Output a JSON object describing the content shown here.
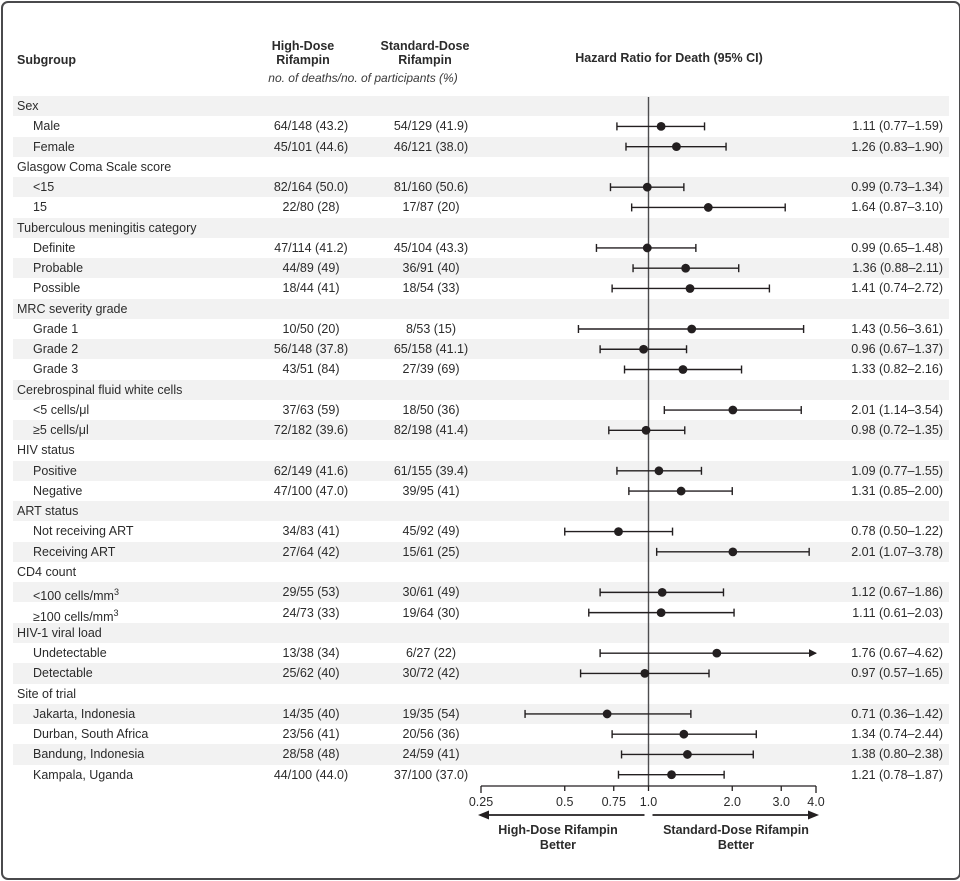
{
  "colors": {
    "band": "#f2f2f2",
    "ink": "#2b2b2b",
    "plot_line": "#231f20",
    "ref_line": "#4d4d4f",
    "border": "#4a4a4c"
  },
  "header": {
    "subgroup": "Subgroup",
    "high_dose": "High-Dose\nRifampin",
    "standard_dose": "Standard-Dose\nRifampin",
    "units_note": "no. of deaths/no. of participants (%)",
    "plot_title": "Hazard Ratio for Death (95% CI)"
  },
  "axis": {
    "scale": "log",
    "min": 0.25,
    "max": 4.0,
    "reference": 1.0,
    "ticks": [
      0.25,
      0.5,
      0.75,
      1.0,
      2.0,
      3.0,
      4.0
    ],
    "tick_labels": [
      "0.25",
      "0.5",
      "0.75",
      "1.0",
      "2.0",
      "3.0",
      "4.0"
    ],
    "left_better": "High-Dose Rifampin\nBetter",
    "right_better": "Standard-Dose Rifampin\nBetter"
  },
  "chart_data": {
    "type": "scatter",
    "subtype": "forest-plot",
    "title": "Hazard Ratio for Death (95% CI)",
    "xscale": "log",
    "xlim": [
      0.25,
      4.0
    ],
    "reference_line": 1.0,
    "legend_position": "none",
    "rows": [
      {
        "type": "category",
        "label": "Sex"
      },
      {
        "type": "item",
        "label": "Male",
        "high_dose": "64/148 (43.2)",
        "standard_dose": "54/129 (41.9)",
        "hr": 1.11,
        "ci_low": 0.77,
        "ci_high": 1.59,
        "hr_text": "1.11 (0.77–1.59)"
      },
      {
        "type": "item",
        "label": "Female",
        "high_dose": "45/101 (44.6)",
        "standard_dose": "46/121 (38.0)",
        "hr": 1.26,
        "ci_low": 0.83,
        "ci_high": 1.9,
        "hr_text": "1.26 (0.83–1.90)"
      },
      {
        "type": "category",
        "label": "Glasgow Coma Scale score"
      },
      {
        "type": "item",
        "label": "<15",
        "high_dose": "82/164 (50.0)",
        "standard_dose": "81/160 (50.6)",
        "hr": 0.99,
        "ci_low": 0.73,
        "ci_high": 1.34,
        "hr_text": "0.99 (0.73–1.34)"
      },
      {
        "type": "item",
        "label": "15",
        "high_dose": "22/80 (28)",
        "standard_dose": "17/87 (20)",
        "hr": 1.64,
        "ci_low": 0.87,
        "ci_high": 3.1,
        "hr_text": "1.64 (0.87–3.10)"
      },
      {
        "type": "category",
        "label": "Tuberculous meningitis category"
      },
      {
        "type": "item",
        "label": "Definite",
        "high_dose": "47/114 (41.2)",
        "standard_dose": "45/104 (43.3)",
        "hr": 0.99,
        "ci_low": 0.65,
        "ci_high": 1.48,
        "hr_text": "0.99 (0.65–1.48)"
      },
      {
        "type": "item",
        "label": "Probable",
        "high_dose": "44/89 (49)",
        "standard_dose": "36/91 (40)",
        "hr": 1.36,
        "ci_low": 0.88,
        "ci_high": 2.11,
        "hr_text": "1.36 (0.88–2.11)"
      },
      {
        "type": "item",
        "label": "Possible",
        "high_dose": "18/44 (41)",
        "standard_dose": "18/54 (33)",
        "hr": 1.41,
        "ci_low": 0.74,
        "ci_high": 2.72,
        "hr_text": "1.41 (0.74–2.72)"
      },
      {
        "type": "category",
        "label": "MRC severity grade"
      },
      {
        "type": "item",
        "label": "Grade 1",
        "high_dose": "10/50 (20)",
        "standard_dose": "8/53 (15)",
        "hr": 1.43,
        "ci_low": 0.56,
        "ci_high": 3.61,
        "hr_text": "1.43 (0.56–3.61)"
      },
      {
        "type": "item",
        "label": "Grade 2",
        "high_dose": "56/148 (37.8)",
        "standard_dose": "65/158 (41.1)",
        "hr": 0.96,
        "ci_low": 0.67,
        "ci_high": 1.37,
        "hr_text": "0.96 (0.67–1.37)"
      },
      {
        "type": "item",
        "label": "Grade 3",
        "high_dose": "43/51 (84)",
        "standard_dose": "27/39 (69)",
        "hr": 1.33,
        "ci_low": 0.82,
        "ci_high": 2.16,
        "hr_text": "1.33 (0.82–2.16)"
      },
      {
        "type": "category",
        "label": "Cerebrospinal fluid white cells"
      },
      {
        "type": "item",
        "label": "<5 cells/μl",
        "high_dose": "37/63 (59)",
        "standard_dose": "18/50 (36)",
        "hr": 2.01,
        "ci_low": 1.14,
        "ci_high": 3.54,
        "hr_text": "2.01 (1.14–3.54)"
      },
      {
        "type": "item",
        "label": "≥5 cells/μl",
        "high_dose": "72/182 (39.6)",
        "standard_dose": "82/198 (41.4)",
        "hr": 0.98,
        "ci_low": 0.72,
        "ci_high": 1.35,
        "hr_text": "0.98 (0.72–1.35)"
      },
      {
        "type": "category",
        "label": "HIV status"
      },
      {
        "type": "item",
        "label": "Positive",
        "high_dose": "62/149 (41.6)",
        "standard_dose": "61/155 (39.4)",
        "hr": 1.09,
        "ci_low": 0.77,
        "ci_high": 1.55,
        "hr_text": "1.09 (0.77–1.55)"
      },
      {
        "type": "item",
        "label": "Negative",
        "high_dose": "47/100 (47.0)",
        "standard_dose": "39/95 (41)",
        "hr": 1.31,
        "ci_low": 0.85,
        "ci_high": 2.0,
        "hr_text": "1.31 (0.85–2.00)"
      },
      {
        "type": "category",
        "label": "ART status"
      },
      {
        "type": "item",
        "label": "Not receiving ART",
        "high_dose": "34/83 (41)",
        "standard_dose": "45/92 (49)",
        "hr": 0.78,
        "ci_low": 0.5,
        "ci_high": 1.22,
        "hr_text": "0.78 (0.50–1.22)"
      },
      {
        "type": "item",
        "label": "Receiving ART",
        "high_dose": "27/64 (42)",
        "standard_dose": "15/61 (25)",
        "hr": 2.01,
        "ci_low": 1.07,
        "ci_high": 3.78,
        "hr_text": "2.01 (1.07–3.78)"
      },
      {
        "type": "category",
        "label": "CD4 count"
      },
      {
        "type": "item",
        "label": "<100 cells/mm³",
        "high_dose": "29/55 (53)",
        "standard_dose": "30/61 (49)",
        "hr": 1.12,
        "ci_low": 0.67,
        "ci_high": 1.86,
        "hr_text": "1.12 (0.67–1.86)"
      },
      {
        "type": "item",
        "label": "≥100 cells/mm³",
        "high_dose": "24/73 (33)",
        "standard_dose": "19/64 (30)",
        "hr": 1.11,
        "ci_low": 0.61,
        "ci_high": 2.03,
        "hr_text": "1.11 (0.61–2.03)"
      },
      {
        "type": "category",
        "label": "HIV-1 viral load"
      },
      {
        "type": "item",
        "label": "Undetectable",
        "high_dose": "13/38 (34)",
        "standard_dose": "6/27 (22)",
        "hr": 1.76,
        "ci_low": 0.67,
        "ci_high": 4.62,
        "hr_text": "1.76 (0.67–4.62)"
      },
      {
        "type": "item",
        "label": "Detectable",
        "high_dose": "25/62 (40)",
        "standard_dose": "30/72 (42)",
        "hr": 0.97,
        "ci_low": 0.57,
        "ci_high": 1.65,
        "hr_text": "0.97 (0.57–1.65)"
      },
      {
        "type": "category",
        "label": "Site of trial"
      },
      {
        "type": "item",
        "label": "Jakarta, Indonesia",
        "high_dose": "14/35 (40)",
        "standard_dose": "19/35 (54)",
        "hr": 0.71,
        "ci_low": 0.36,
        "ci_high": 1.42,
        "hr_text": "0.71 (0.36–1.42)"
      },
      {
        "type": "item",
        "label": "Durban, South Africa",
        "high_dose": "23/56 (41)",
        "standard_dose": "20/56 (36)",
        "hr": 1.34,
        "ci_low": 0.74,
        "ci_high": 2.44,
        "hr_text": "1.34 (0.74–2.44)"
      },
      {
        "type": "item",
        "label": "Bandung, Indonesia",
        "high_dose": "28/58 (48)",
        "standard_dose": "24/59 (41)",
        "hr": 1.38,
        "ci_low": 0.8,
        "ci_high": 2.38,
        "hr_text": "1.38 (0.80–2.38)"
      },
      {
        "type": "item",
        "label": "Kampala, Uganda",
        "high_dose": "44/100 (44.0)",
        "standard_dose": "37/100 (37.0)",
        "hr": 1.21,
        "ci_low": 0.78,
        "ci_high": 1.87,
        "hr_text": "1.21 (0.78–1.87)"
      }
    ]
  }
}
